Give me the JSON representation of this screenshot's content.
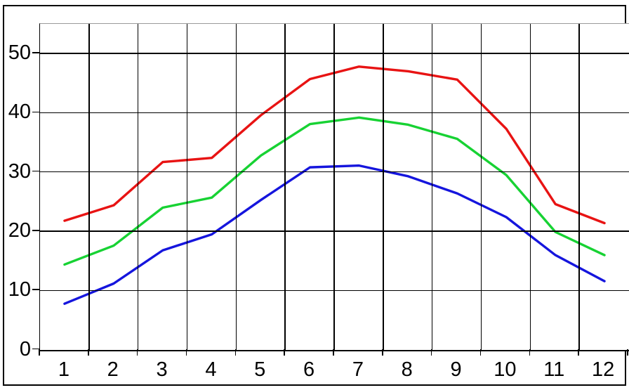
{
  "chart_data": {
    "type": "line",
    "title": "",
    "xlabel": "",
    "ylabel": "",
    "x_tick_labels": [
      "1",
      "2",
      "3",
      "4",
      "5",
      "6",
      "7",
      "8",
      "9",
      "10",
      "11",
      "12"
    ],
    "y_tick_labels": [
      "0",
      "10",
      "20",
      "30",
      "40",
      "50"
    ],
    "y_ticks": [
      0,
      10,
      20,
      30,
      40,
      50
    ],
    "ylim": [
      0,
      55
    ],
    "xlim_categories": 12,
    "grid": true,
    "legend": false,
    "series": [
      {
        "name": "red-series",
        "color": "#e81313",
        "values": [
          21.8,
          24.4,
          31.7,
          32.4,
          39.6,
          45.7,
          47.8,
          47.0,
          45.6,
          37.3,
          24.6,
          21.4
        ]
      },
      {
        "name": "green-series",
        "color": "#17d233",
        "values": [
          14.4,
          17.6,
          24.0,
          25.7,
          32.8,
          38.1,
          39.2,
          38.0,
          35.6,
          29.5,
          19.9,
          16.0
        ]
      },
      {
        "name": "blue-series",
        "color": "#1515dd",
        "values": [
          7.8,
          11.2,
          16.8,
          19.5,
          25.3,
          30.8,
          31.1,
          29.3,
          26.4,
          22.4,
          16.0,
          11.6
        ]
      }
    ],
    "colors": {
      "grid": "#000000",
      "plot_top_border": "#9a9a9a",
      "axis_text": "#000000",
      "background": "#ffffff"
    }
  }
}
